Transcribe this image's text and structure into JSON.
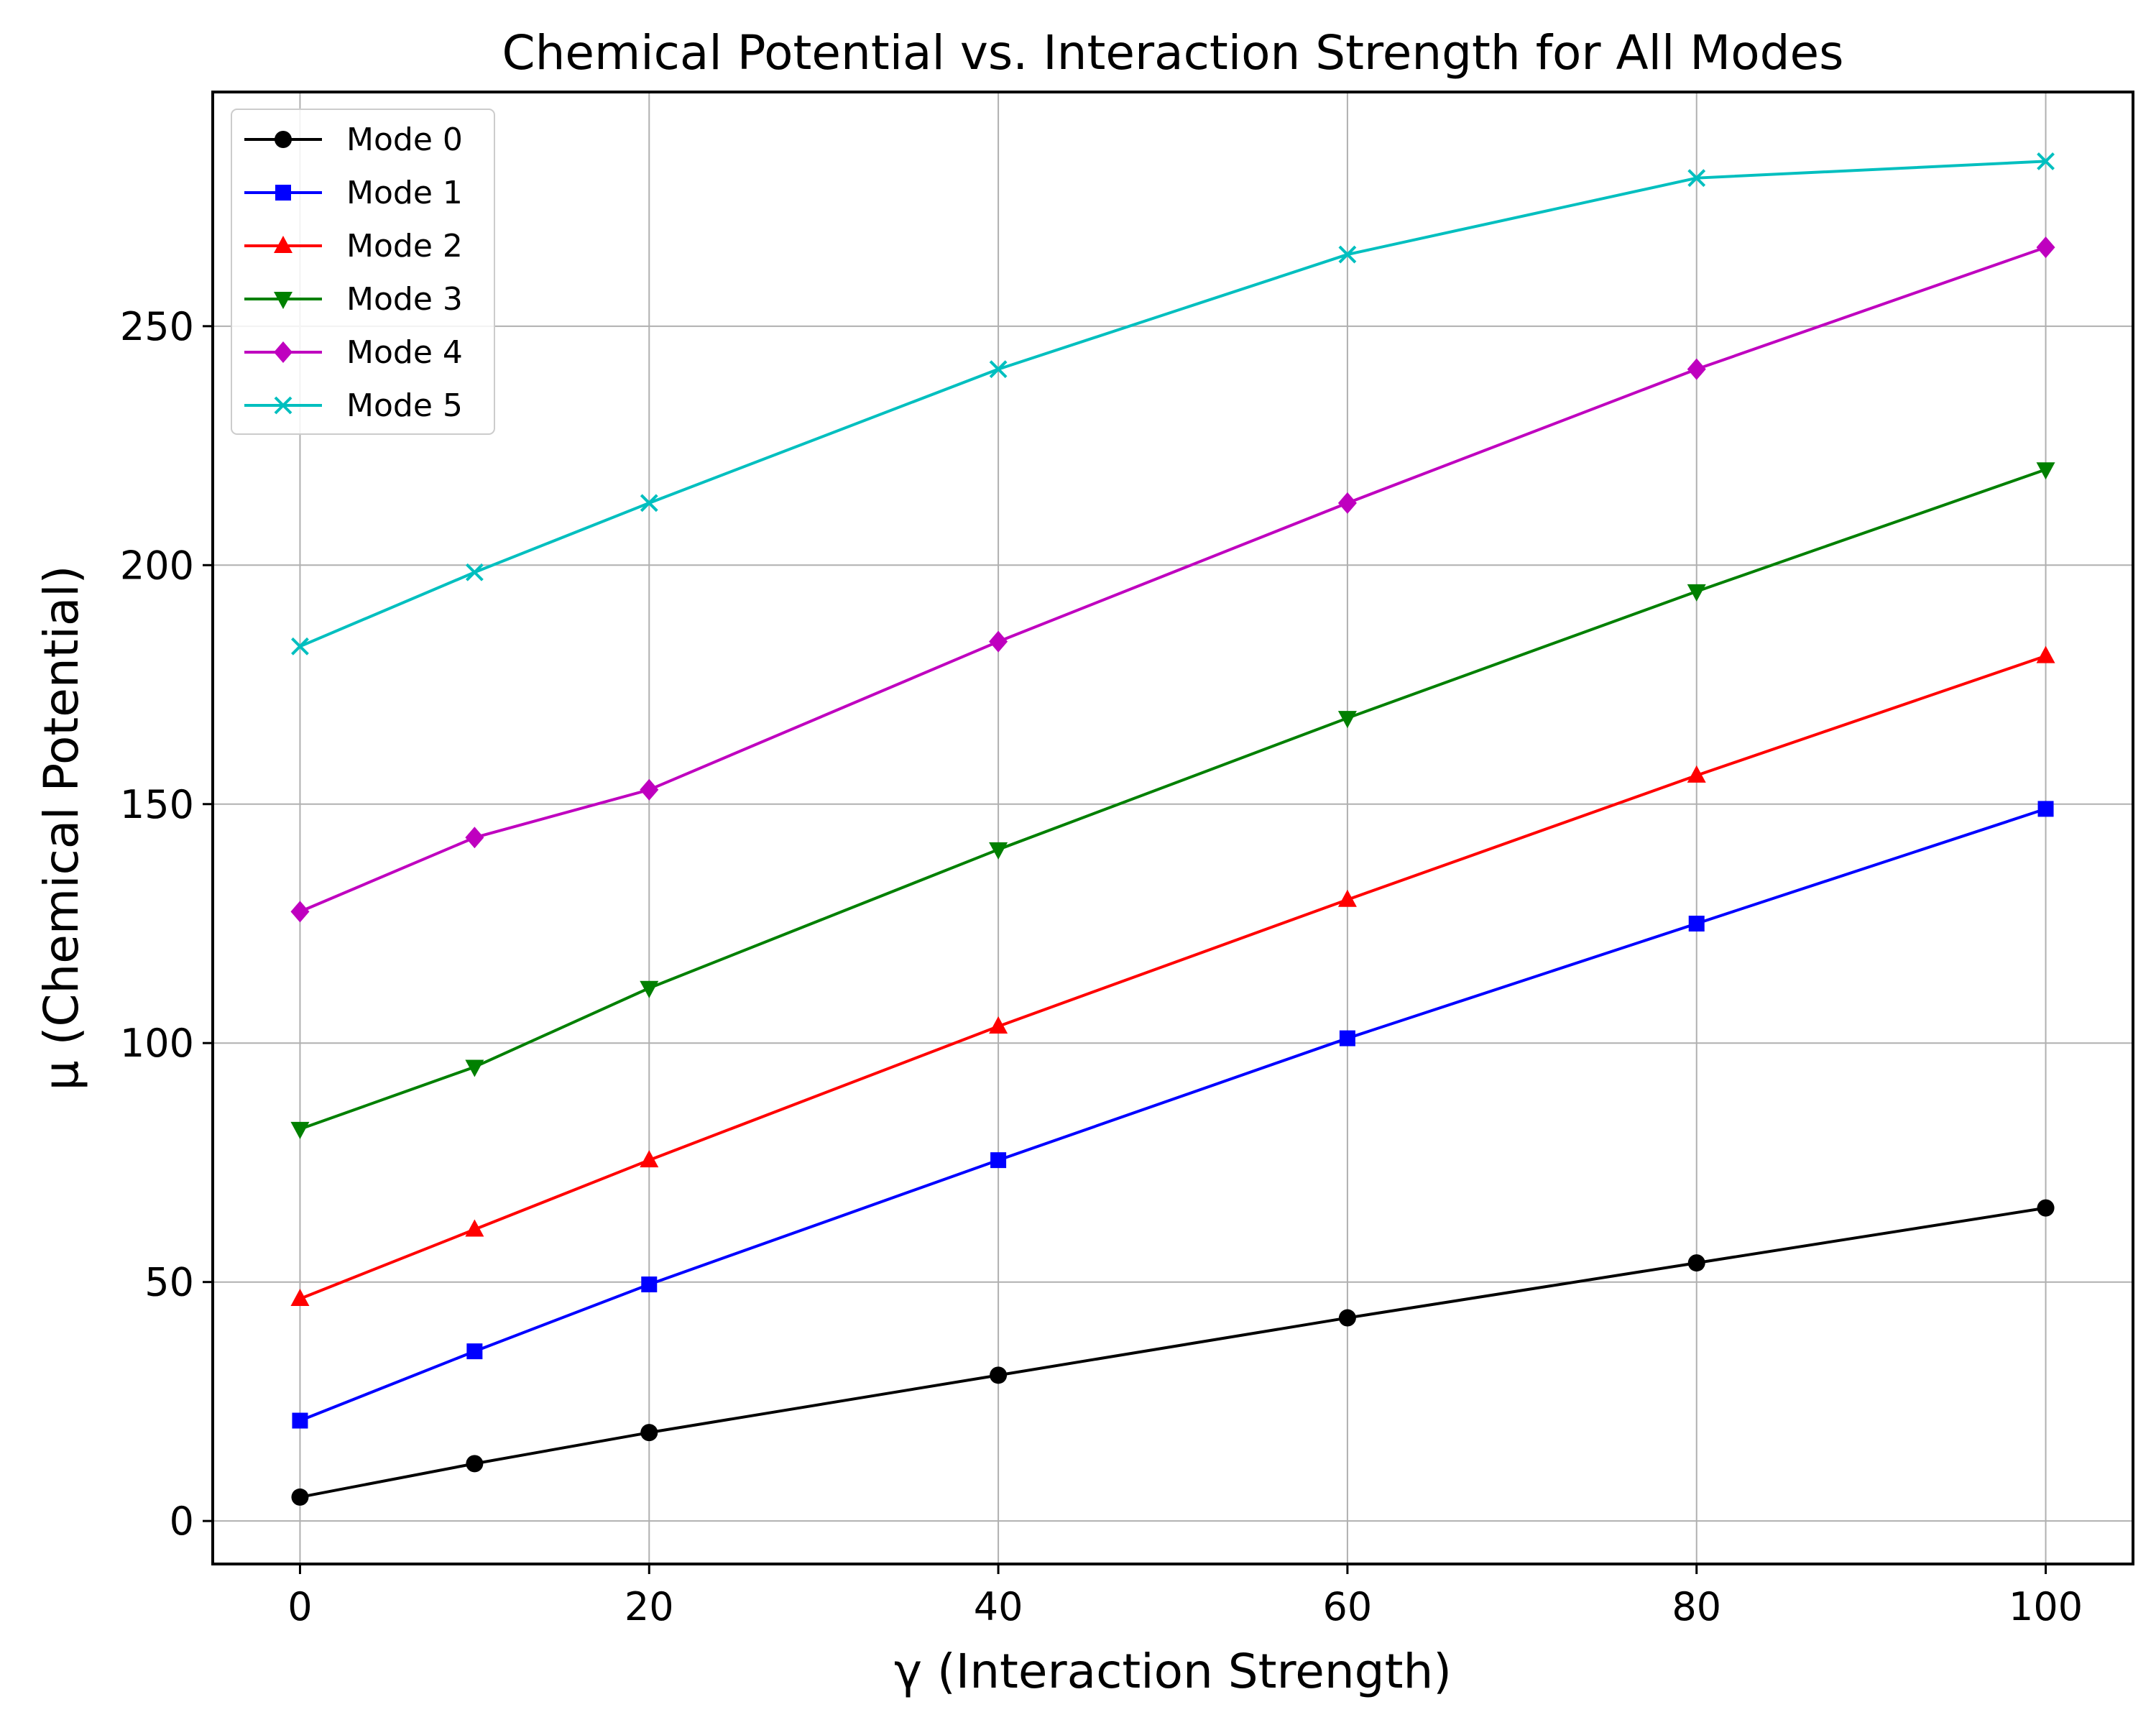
{
  "chart_data": {
    "type": "line",
    "title": "Chemical Potential vs. Interaction Strength for All Modes",
    "xlabel": "γ (Interaction Strength)",
    "ylabel": "μ (Chemical Potential)",
    "xlim": [
      -5,
      105
    ],
    "ylim": [
      -9,
      299
    ],
    "xticks": [
      0,
      20,
      40,
      60,
      80,
      100
    ],
    "yticks": [
      0,
      50,
      100,
      150,
      200,
      250
    ],
    "grid": true,
    "legend_position": "top-left",
    "x": [
      0,
      10,
      20,
      40,
      60,
      80,
      100
    ],
    "series": [
      {
        "name": "Mode 0",
        "color": "#000000",
        "marker": "circle",
        "values": [
          5,
          12,
          18.5,
          30.5,
          42.5,
          54,
          65.5
        ]
      },
      {
        "name": "Mode 1",
        "color": "#0000ff",
        "marker": "square",
        "values": [
          21,
          35.5,
          49.5,
          75.5,
          101,
          125,
          149
        ]
      },
      {
        "name": "Mode 2",
        "color": "#ff0000",
        "marker": "triangle-up",
        "values": [
          46.5,
          61,
          75.5,
          103.5,
          130,
          156,
          181
        ]
      },
      {
        "name": "Mode 3",
        "color": "#008000",
        "marker": "triangle-down",
        "values": [
          82,
          95,
          111.5,
          140.5,
          168,
          194.5,
          220
        ]
      },
      {
        "name": "Mode 4",
        "color": "#bf00bf",
        "marker": "diamond",
        "values": [
          127.5,
          143,
          153,
          184,
          213,
          241,
          266.5
        ]
      },
      {
        "name": "Mode 5",
        "color": "#00bfbf",
        "marker": "x",
        "values": [
          183,
          198.5,
          213,
          241,
          265,
          281,
          284.5
        ]
      }
    ]
  }
}
